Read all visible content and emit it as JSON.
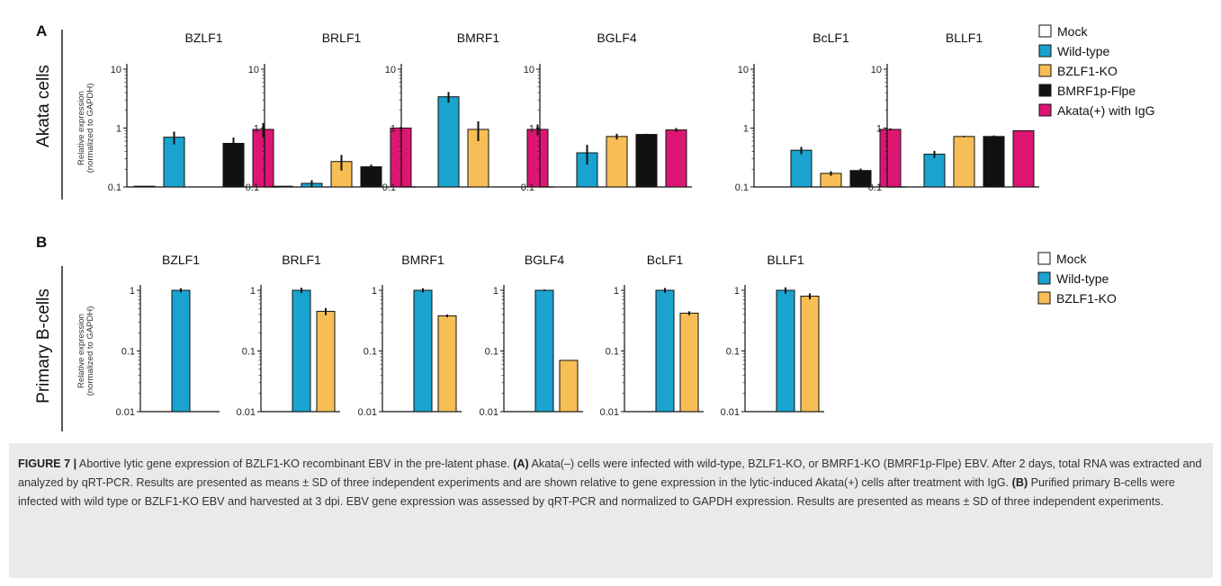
{
  "panel_labels": [
    "A",
    "B"
  ],
  "row_labels": [
    "Akata cells",
    "Primary B-cells"
  ],
  "ylabel_lines": [
    "Relative expression",
    "(normalized to GAPDH)"
  ],
  "colors": {
    "Mock": "#ffffff",
    "Wild-type": "#1aa3cf",
    "BZLF1-KO": "#f6be55",
    "BMRF1p-Flpe": "#111111",
    "Akata(+) with IgG": "#dd1673"
  },
  "legend_A": [
    "Mock",
    "Wild-type",
    "BZLF1-KO",
    "BMRF1p-Flpe",
    "Akata(+) with IgG"
  ],
  "legend_B": [
    "Mock",
    "Wild-type",
    "BZLF1-KO"
  ],
  "chart_data": [
    {
      "type": "bar",
      "panel": "A",
      "yscale": "log",
      "ylim": [
        0.1,
        10
      ],
      "yticks": [
        "0.1",
        "1",
        "10"
      ],
      "series_names": [
        "Mock",
        "Wild-type",
        "BZLF1-KO",
        "BMRF1p-Flpe",
        "Akata(+) with IgG"
      ],
      "subplots": [
        {
          "title": "BZLF1",
          "values": [
            0.1,
            0.7,
            null,
            0.55,
            0.95
          ],
          "errors": [
            0.003,
            0.17,
            null,
            0.14,
            0.27
          ]
        },
        {
          "title": "BRLF1",
          "values": [
            0.1,
            0.115,
            0.27,
            0.22,
            1.0
          ],
          "errors": [
            null,
            0.015,
            0.08,
            0.02,
            0.05
          ]
        },
        {
          "title": "BMRF1",
          "values": [
            null,
            3.4,
            0.95,
            null,
            0.95
          ],
          "errors": [
            null,
            0.7,
            0.35,
            null,
            0.2
          ]
        },
        {
          "title": "BGLF4",
          "values": [
            null,
            0.38,
            0.72,
            0.78,
            0.93
          ],
          "errors": [
            null,
            0.14,
            0.08,
            0.02,
            0.07
          ]
        },
        {
          "title": "BcLF1",
          "values": [
            null,
            0.42,
            0.17,
            0.19,
            0.95
          ],
          "errors": [
            null,
            0.06,
            0.015,
            0.015,
            0.04
          ]
        },
        {
          "title": "BLLF1",
          "values": [
            null,
            0.36,
            0.72,
            0.72,
            0.9
          ],
          "errors": [
            null,
            0.05,
            0.02,
            0.03,
            null
          ]
        }
      ]
    },
    {
      "type": "bar",
      "panel": "B",
      "yscale": "log",
      "ylim": [
        0.01,
        1.5
      ],
      "yticks": [
        "0.01",
        "0.1",
        "1"
      ],
      "series_names": [
        "Mock",
        "Wild-type",
        "BZLF1-KO"
      ],
      "subplots": [
        {
          "title": "BZLF1",
          "values": [
            null,
            1.0,
            null
          ],
          "errors": [
            null,
            0.08,
            null
          ]
        },
        {
          "title": "BRLF1",
          "values": [
            null,
            1.0,
            0.45
          ],
          "errors": [
            null,
            0.1,
            0.06
          ]
        },
        {
          "title": "BMRF1",
          "values": [
            null,
            1.0,
            0.38
          ],
          "errors": [
            null,
            0.08,
            0.02
          ]
        },
        {
          "title": "BGLF4",
          "values": [
            null,
            1.0,
            0.07
          ],
          "errors": [
            null,
            0.03,
            null
          ]
        },
        {
          "title": "BcLF1",
          "values": [
            null,
            1.0,
            0.42
          ],
          "errors": [
            null,
            0.09,
            0.03
          ]
        },
        {
          "title": "BLLF1",
          "values": [
            null,
            1.0,
            0.8
          ],
          "errors": [
            null,
            0.12,
            0.09
          ]
        }
      ]
    }
  ],
  "caption": {
    "figure_label": "FIGURE 7 |",
    "text1": " Abortive lytic gene expression of BZLF1-KO recombinant EBV in the pre-latent phase. ",
    "label_a": "(A)",
    "text2": " Akata(–) cells were infected with wild-type, BZLF1-KO, or BMRF1-KO (BMRF1p-Flpe) EBV. After 2 days, total RNA was extracted and analyzed by qRT-PCR. Results are presented as means ± SD of three independent experiments and are shown relative to gene expression in the lytic-induced Akata(+) cells after treatment with IgG. ",
    "label_b": "(B)",
    "text3": " Purified primary B-cells were infected with wild type or BZLF1-KO EBV and harvested at 3 dpi. EBV gene expression was assessed by qRT-PCR and normalized to GAPDH expression. Results are presented as means ± SD of three independent experiments."
  }
}
